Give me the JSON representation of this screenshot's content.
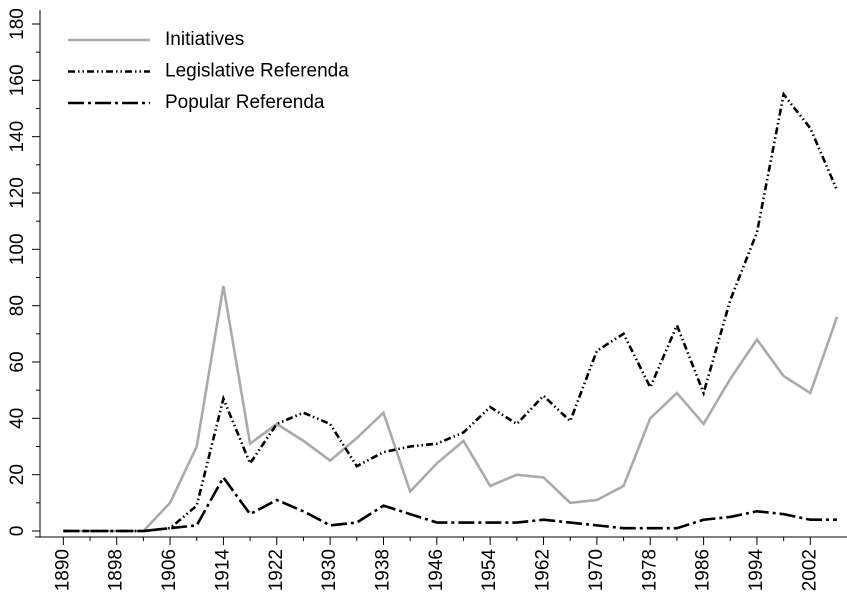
{
  "chart_data": {
    "type": "line",
    "x": [
      1890,
      1894,
      1898,
      1902,
      1906,
      1910,
      1914,
      1918,
      1922,
      1926,
      1930,
      1934,
      1938,
      1942,
      1946,
      1950,
      1954,
      1958,
      1962,
      1966,
      1970,
      1974,
      1978,
      1982,
      1986,
      1990,
      1994,
      1998,
      2002,
      2006
    ],
    "series": [
      {
        "name": "Initiatives",
        "color": "#aaaaaa",
        "dash": "solid",
        "values": [
          0,
          0,
          0,
          0,
          10,
          30,
          87,
          31,
          38,
          32,
          25,
          33,
          42,
          14,
          24,
          32,
          16,
          20,
          19,
          10,
          11,
          16,
          40,
          49,
          38,
          54,
          68,
          55,
          49,
          76
        ]
      },
      {
        "name": "Legislative Referenda",
        "color": "#000000",
        "dash": "dash-dot-dot",
        "values": [
          0,
          0,
          0,
          0,
          1,
          9,
          47,
          24,
          38,
          42,
          38,
          23,
          28,
          30,
          31,
          35,
          44,
          38,
          48,
          39,
          64,
          70,
          51,
          73,
          49,
          82,
          106,
          155,
          143,
          121
        ]
      },
      {
        "name": "Popular Referenda",
        "color": "#000000",
        "dash": "long-dash-dot",
        "values": [
          0,
          0,
          0,
          0,
          1,
          2,
          19,
          6,
          11,
          7,
          2,
          3,
          9,
          6,
          3,
          3,
          3,
          3,
          4,
          3,
          2,
          1,
          1,
          1,
          4,
          5,
          7,
          6,
          4,
          4
        ]
      }
    ],
    "xlim": [
      1886.5,
      2007.5
    ],
    "xticks": [
      1890,
      1898,
      1906,
      1914,
      1922,
      1930,
      1938,
      1946,
      1954,
      1962,
      1970,
      1978,
      1986,
      1994,
      2002
    ],
    "ylim": [
      0,
      180
    ],
    "yticks": [
      0,
      20,
      40,
      60,
      80,
      100,
      120,
      140,
      160,
      180
    ],
    "legend": "upper-left"
  }
}
